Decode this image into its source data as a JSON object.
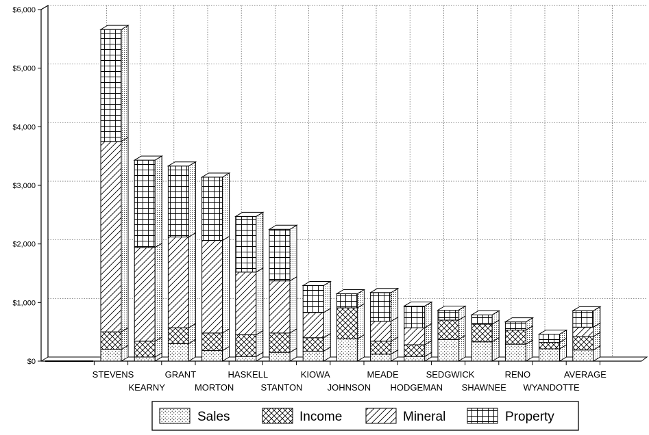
{
  "chart_data": {
    "type": "bar",
    "stacked": true,
    "style": "3d",
    "grid": true,
    "legend_position": "bottom",
    "ylim": [
      0,
      6000
    ],
    "yticks": [
      "$0",
      "$1,000",
      "$2,000",
      "$3,000",
      "$4,000",
      "$5,000",
      "$6,000"
    ],
    "ytick_values": [
      0,
      1000,
      2000,
      3000,
      4000,
      5000,
      6000
    ],
    "categories": [
      "STEVENS",
      "KEARNY",
      "GRANT",
      "MORTON",
      "HASKELL",
      "STANTON",
      "KIOWA",
      "JOHNSON",
      "MEADE",
      "HODGEMAN",
      "SEDGWICK",
      "SHAWNEE",
      "RENO",
      "WYANDOTTE",
      "AVERAGE"
    ],
    "series": [
      {
        "name": "Sales",
        "pattern": "dots",
        "values": [
          200,
          70,
          300,
          180,
          80,
          150,
          170,
          380,
          120,
          80,
          370,
          330,
          290,
          210,
          190
        ]
      },
      {
        "name": "Income",
        "pattern": "crosshatch",
        "values": [
          300,
          270,
          270,
          300,
          370,
          330,
          230,
          530,
          220,
          200,
          330,
          300,
          240,
          110,
          230
        ]
      },
      {
        "name": "Mineral",
        "pattern": "diagonal",
        "values": [
          3250,
          1600,
          1550,
          1580,
          1070,
          890,
          430,
          0,
          340,
          290,
          0,
          0,
          0,
          0,
          160
        ]
      },
      {
        "name": "Property",
        "pattern": "grid",
        "values": [
          1910,
          1490,
          1210,
          1080,
          950,
          880,
          460,
          240,
          490,
          370,
          170,
          160,
          140,
          140,
          280
        ]
      }
    ],
    "legend": {
      "sales": "Sales",
      "income": "Income",
      "mineral": "Mineral",
      "property": "Property"
    }
  }
}
